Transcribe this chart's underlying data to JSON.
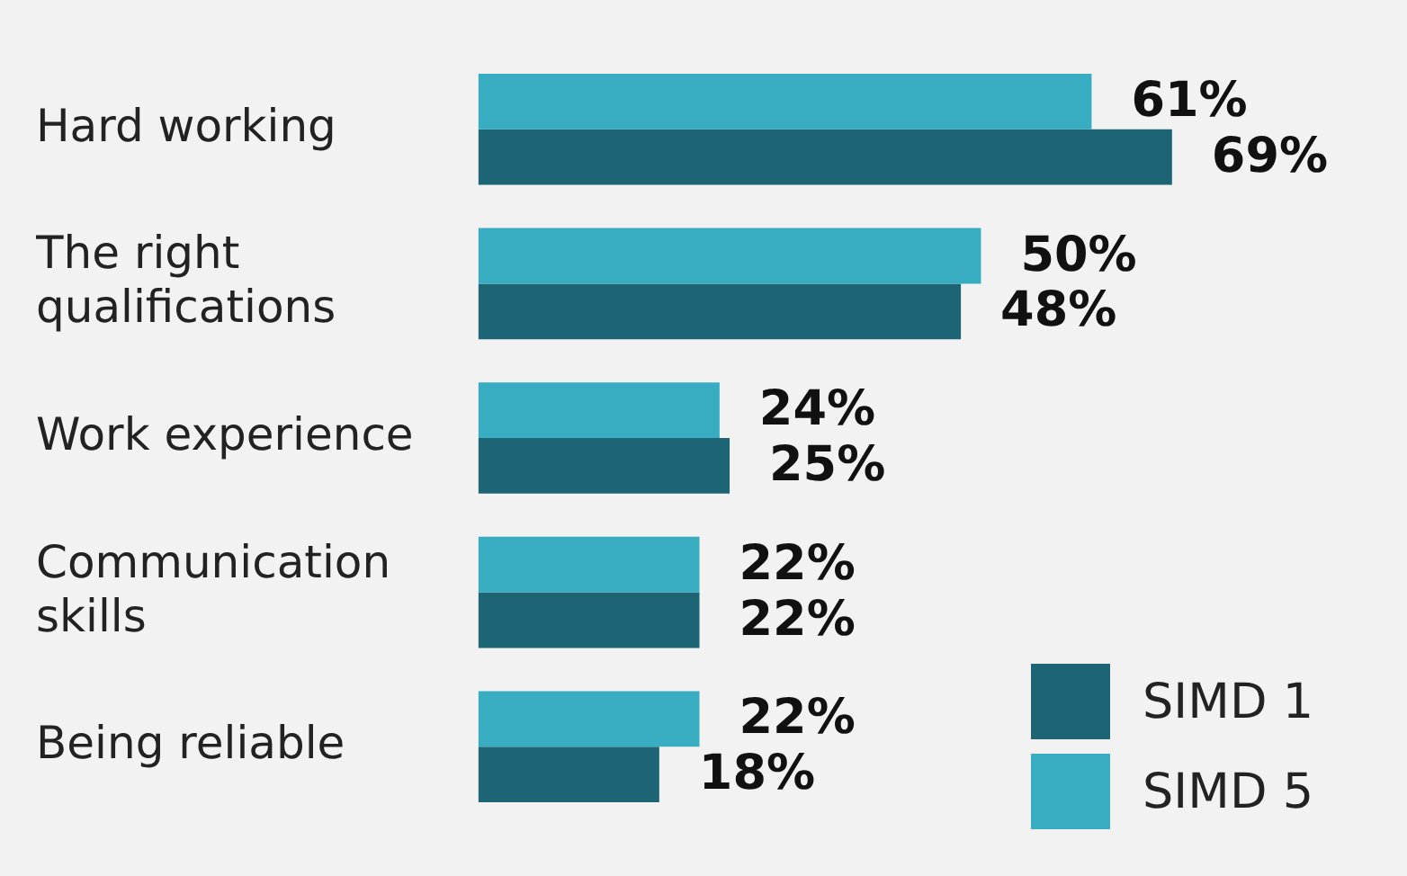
{
  "chart_data": {
    "type": "bar",
    "orientation": "horizontal",
    "categories": [
      "Hard working",
      "The right qualifications",
      "Work experience",
      "Communication skills",
      "Being reliable"
    ],
    "series": [
      {
        "name": "SIMD 5",
        "color": "#38adc1",
        "values": [
          61,
          50,
          24,
          22,
          22
        ],
        "value_labels": [
          "61%",
          "50%",
          "24%",
          "22%",
          "22%"
        ]
      },
      {
        "name": "SIMD 1",
        "color": "#1d6474",
        "values": [
          69,
          48,
          25,
          22,
          18
        ],
        "value_labels": [
          "69%",
          "48%",
          "25%",
          "22%",
          "18%"
        ]
      }
    ],
    "tick_labels": "y",
    "legend": "bottom right"
  }
}
